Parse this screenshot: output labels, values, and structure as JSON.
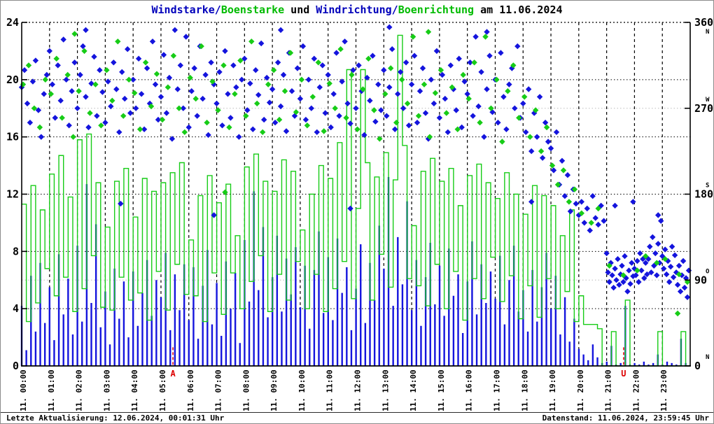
{
  "title": {
    "parts": [
      {
        "text": "Windstarke/",
        "color": "#0000bb"
      },
      {
        "text": "Boenstarke",
        "color": "#00bb00"
      },
      {
        "text": " und ",
        "color": "#000000"
      },
      {
        "text": "Windrichtung/",
        "color": "#0000bb"
      },
      {
        "text": "Boenrichtung",
        "color": "#00bb00"
      },
      {
        "text": " am 11.06.2024",
        "color": "#000000"
      }
    ]
  },
  "footer": {
    "left": "Letzte Aktualisierung: 12.06.2024, 00:01:31 Uhr",
    "right": "Datenstand: 11.06.2024, 23:59:45 Uhr"
  },
  "colors": {
    "wind": "#1414dd",
    "gust": "#17cc17",
    "event": "#dd0000",
    "grid_major": "#000000",
    "grid_minor": "#bbbbbb",
    "background": "#ffffff",
    "frame": "#8c8c8c"
  },
  "chart_data": {
    "type": "mixed",
    "title_text": "Windstarke/Boenstarke und Windrichtung/Boenrichtung am 11.06.2024",
    "date": "11.06.2024",
    "left_axis": {
      "min": 0,
      "max": 24,
      "ticks": [
        0,
        4,
        8,
        12,
        16,
        20,
        24
      ]
    },
    "right_axis": {
      "min": 0,
      "max": 360,
      "ticks": [
        {
          "value": 360,
          "compass": "N"
        },
        {
          "value": 270,
          "compass": "W"
        },
        {
          "value": 180,
          "compass": "S"
        },
        {
          "value": 90,
          "compass": "O"
        },
        {
          "value": 0,
          "compass": "N"
        }
      ]
    },
    "grid": {
      "left": [
        4,
        8,
        12,
        16,
        20
      ],
      "right": [
        90,
        270
      ]
    },
    "x_axis": {
      "labels": [
        "11. 00:00",
        "11. 01:00",
        "11. 02:00",
        "11. 03:00",
        "11. 04:00",
        "11. 05:00",
        "11. 06:00",
        "11. 07:00",
        "11. 08:00",
        "11. 09:00",
        "11. 10:00",
        "11. 11:00",
        "11. 12:00",
        "11. 13:00",
        "11. 14:00",
        "11. 15:00",
        "11. 16:00",
        "11. 17:00",
        "11. 18:00",
        "11. 19:00",
        "11. 20:00",
        "11. 21:00",
        "11. 22:00",
        "11. 23:00"
      ]
    },
    "events": [
      {
        "label": "A",
        "hour": 5.43,
        "color": "#dd0000"
      },
      {
        "label": "U",
        "hour": 21.61,
        "color": "#dd0000"
      }
    ],
    "series": [
      {
        "id": "wind-speed",
        "name": "Windstarke",
        "type": "impulse",
        "axis": "left",
        "color": "#1414dd",
        "t0": 0,
        "dt": 0.1667,
        "values": [
          4.2,
          1.1,
          6.3,
          2.4,
          7.2,
          3.0,
          5.5,
          1.8,
          7.8,
          3.6,
          6.1,
          2.2,
          8.4,
          3.1,
          12.7,
          4.4,
          9.9,
          2.7,
          5.2,
          1.5,
          6.8,
          3.3,
          5.9,
          2.0,
          6.6,
          2.8,
          5.1,
          7.4,
          3.5,
          6.0,
          4.8,
          7.9,
          2.5,
          6.4,
          3.9,
          7.1,
          3.2,
          6.9,
          1.9,
          5.6,
          8.1,
          2.9,
          5.8,
          2.1,
          7.3,
          4.0,
          6.5,
          1.6,
          8.8,
          4.5,
          12.2,
          5.3,
          9.7,
          3.4,
          6.2,
          9.1,
          3.8,
          7.5,
          5.0,
          8.3,
          4.1,
          7.0,
          2.6,
          6.7,
          9.4,
          3.7,
          7.6,
          3.2,
          8.9,
          5.1,
          6.9,
          2.5,
          5.4,
          8.5,
          3.0,
          7.2,
          4.6,
          9.8,
          6.8,
          13.2,
          4.2,
          9.0,
          5.7,
          11.5,
          3.9,
          7.4,
          2.8,
          6.2,
          8.6,
          4.3,
          7.0,
          3.5,
          8.2,
          4.9,
          6.4,
          2.3,
          5.9,
          8.7,
          3.6,
          7.1,
          4.4,
          6.6,
          4.7,
          7.7,
          2.9,
          6.0,
          8.4,
          3.8,
          5.3,
          2.4,
          6.7,
          3.1,
          5.5,
          7.9,
          4.0,
          6.3,
          2.2,
          4.8,
          1.7,
          3.3,
          1.2,
          0.8,
          0.4,
          1.5,
          0.6,
          0.2,
          0.3,
          1.4,
          0.1,
          0.2,
          4.2,
          0.1,
          0.2,
          0.1,
          0.3,
          0.1,
          0.2,
          0.8,
          0.1,
          0.3,
          0.2,
          0.1,
          1.9,
          0.2
        ]
      },
      {
        "id": "gust-speed",
        "name": "Boenstarke",
        "type": "step",
        "axis": "left",
        "color": "#17cc17",
        "t0": 0,
        "dt": 0.1667,
        "values": [
          11.3,
          3.1,
          12.6,
          4.4,
          10.9,
          6.8,
          13.4,
          4.9,
          14.7,
          6.2,
          11.8,
          3.8,
          15.8,
          5.4,
          16.2,
          7.7,
          12.8,
          4.1,
          9.7,
          3.9,
          12.9,
          6.2,
          13.8,
          4.6,
          10.4,
          5.1,
          13.1,
          3.2,
          12.2,
          6.6,
          12.8,
          3.9,
          13.5,
          7.1,
          14.2,
          5.0,
          8.8,
          4.9,
          11.9,
          3.1,
          13.3,
          6.5,
          11.4,
          3.6,
          12.7,
          6.5,
          9.1,
          4.0,
          13.9,
          5.9,
          14.8,
          7.7,
          12.9,
          3.8,
          12.2,
          6.4,
          14.4,
          4.6,
          13.6,
          7.3,
          9.5,
          4.0,
          12.0,
          6.4,
          14.0,
          3.8,
          13.1,
          5.4,
          15.6,
          7.3,
          20.7,
          4.7,
          11.0,
          20.7,
          14.2,
          4.6,
          13.2,
          7.8,
          14.9,
          5.5,
          13.0,
          23.1,
          15.4,
          6.1,
          9.8,
          5.6,
          13.6,
          4.2,
          14.5,
          7.1,
          12.9,
          4.0,
          13.8,
          6.6,
          11.2,
          3.2,
          13.3,
          6.1,
          14.1,
          4.7,
          12.8,
          7.6,
          11.7,
          4.5,
          13.5,
          6.3,
          12.0,
          3.3,
          10.6,
          5.6,
          12.6,
          3.4,
          11.9,
          6.1,
          11.2,
          4.0,
          9.1,
          5.2,
          10.9,
          3.1,
          4.9,
          2.9,
          2.9,
          2.9,
          2.6,
          0,
          0,
          2.4,
          0,
          0,
          4.6,
          0,
          0,
          0,
          0,
          0,
          0,
          2.4,
          0,
          0,
          0,
          0,
          2.4,
          0
        ]
      },
      {
        "id": "wind-direction-scatter",
        "name": "Windrichtung",
        "type": "scatter",
        "axis": "right",
        "color": "#1414dd",
        "runs": [
          {
            "t0": 0.0,
            "dt": 0.1,
            "deg": [
              292,
              310,
              275,
              255,
              298,
              320,
              268,
              240,
              285,
              305,
              330,
              295,
              260,
              315,
              278,
              342,
              300,
              252,
              288,
              318,
              270,
              305,
              335,
              282,
              250,
              296,
              324,
              262,
              310,
              287,
              255,
              298,
              272,
              318,
              290,
              245,
              308,
              280,
              332,
              265,
              300,
              270,
              322,
              285,
              248,
              312,
              275,
              340,
              295,
              258,
              282,
              326,
              265,
              302,
              238,
              352,
              290,
              315,
              270,
              345,
              250,
              288,
              312,
              262,
              335,
              280,
              305,
              242,
              318,
              295,
              275,
              308,
              252,
              330,
              285,
              260,
              315,
              292,
              240,
              300,
              322,
              268,
              296,
              248,
              310,
              284,
              338,
              258,
              302,
              276,
              290,
              255,
              318,
              272,
              305,
              246,
              328,
              288,
              262,
              312,
              280,
              335,
              258,
              300,
              270,
              322,
              245,
              292,
              315,
              265,
              305,
              250,
              285,
              328,
              262,
              298,
              340,
              275,
              254,
              310,
              270,
              315,
              288,
              242,
              302,
              278,
              325,
              256,
              295,
              268,
              310,
              262,
              292,
              332,
              248,
              285,
              308,
              270,
              318,
              252,
              295,
              325,
              255,
              288,
              312,
              265,
              238,
              300,
              275,
              330,
              260,
              305,
              280,
              245,
              315,
              290,
              268,
              322,
              250,
              298,
              285,
              318,
              262,
              345,
              272,
              308,
              240,
              290,
              325,
              266,
              300,
              255,
              328,
              282,
              248,
              295,
              312,
              270,
              335,
              260,
              275,
              245,
              290,
              225,
              265,
              240,
              282,
              218,
              255,
              235,
              228,
              205,
              245,
              190,
              215,
              178,
              200,
              162,
              185,
              170,
              158,
              172,
              150,
              165,
              142,
              178,
              155,
              148,
              168,
              152
            ]
          },
          {
            "t0": 21.0,
            "dt": 0.05,
            "deg": [
              118,
              98,
              88,
              108,
              95,
              82,
              102,
              90,
              112,
              85,
              96,
              105,
              88,
              115,
              92,
              78,
              100,
              86,
              108,
              94,
              102,
              95,
              110,
              88,
              118,
              100,
              112,
              92,
              108,
              96,
              112,
              125,
              98,
              135,
              105,
              118,
              95,
              128,
              108,
              152,
              115,
              102,
              122,
              96,
              110,
              88,
              104,
              125,
              93,
              116,
              98,
              85,
              105,
              78,
              95,
              110,
              82,
              92,
              72,
              100
            ]
          }
        ],
        "extra": [
          [
            2.3,
            352
          ],
          [
            3.55,
            170
          ],
          [
            6.9,
            158
          ],
          [
            9.3,
            352
          ],
          [
            11.8,
            165
          ],
          [
            13.2,
            355
          ],
          [
            16.7,
            350
          ],
          [
            18.3,
            172
          ],
          [
            21.3,
            168
          ],
          [
            21.95,
            172
          ],
          [
            22.85,
            158
          ]
        ]
      },
      {
        "id": "gust-direction-scatter",
        "name": "Boenrichtung",
        "type": "scatter",
        "axis": "right",
        "color": "#17cc17",
        "runs": [
          {
            "t0": 0.05,
            "dt": 0.2,
            "deg": [
              295,
              315,
              270,
              250,
              300,
              285,
              322,
              260,
              305,
              240,
              288,
              330,
              265,
              295,
              252,
              310,
              278,
              340,
              262,
              300,
              286,
              248,
              318,
              272,
              306,
              258,
              292,
              325,
              270,
              245,
              302,
              280,
              335,
              255,
              298,
              268,
              315,
              250,
              285,
              320,
              262,
              340,
              275,
              245,
              295,
              310,
              258,
              288,
              328,
              266,
              300,
              252,
              282,
              318,
              246,
              296,
              270,
              332,
              260,
              305,
              248,
              290,
              322,
              268,
              238,
              285,
              312,
              255,
              300,
              275,
              345,
              262,
              295,
              240,
              286,
              310,
              265,
              292,
              248,
              305,
              280,
              318,
              255,
              345,
              270,
              300,
              235,
              288,
              315,
              260,
              282,
              240,
              268,
              225,
              250,
              210,
              190,
              205,
              172,
              185
            ]
          }
        ],
        "extra": [
          [
            1.9,
            348
          ],
          [
            7.3,
            182
          ],
          [
            14.6,
            350
          ],
          [
            20.1,
            160
          ],
          [
            20.45,
            150
          ],
          [
            20.7,
            165
          ],
          [
            21.1,
            105
          ],
          [
            21.6,
            95
          ],
          [
            22.1,
            100
          ],
          [
            22.4,
            115
          ],
          [
            22.8,
            108
          ],
          [
            23.1,
            112
          ],
          [
            23.55,
            55
          ],
          [
            23.6,
            96
          ],
          [
            23.9,
            88
          ]
        ]
      }
    ]
  }
}
